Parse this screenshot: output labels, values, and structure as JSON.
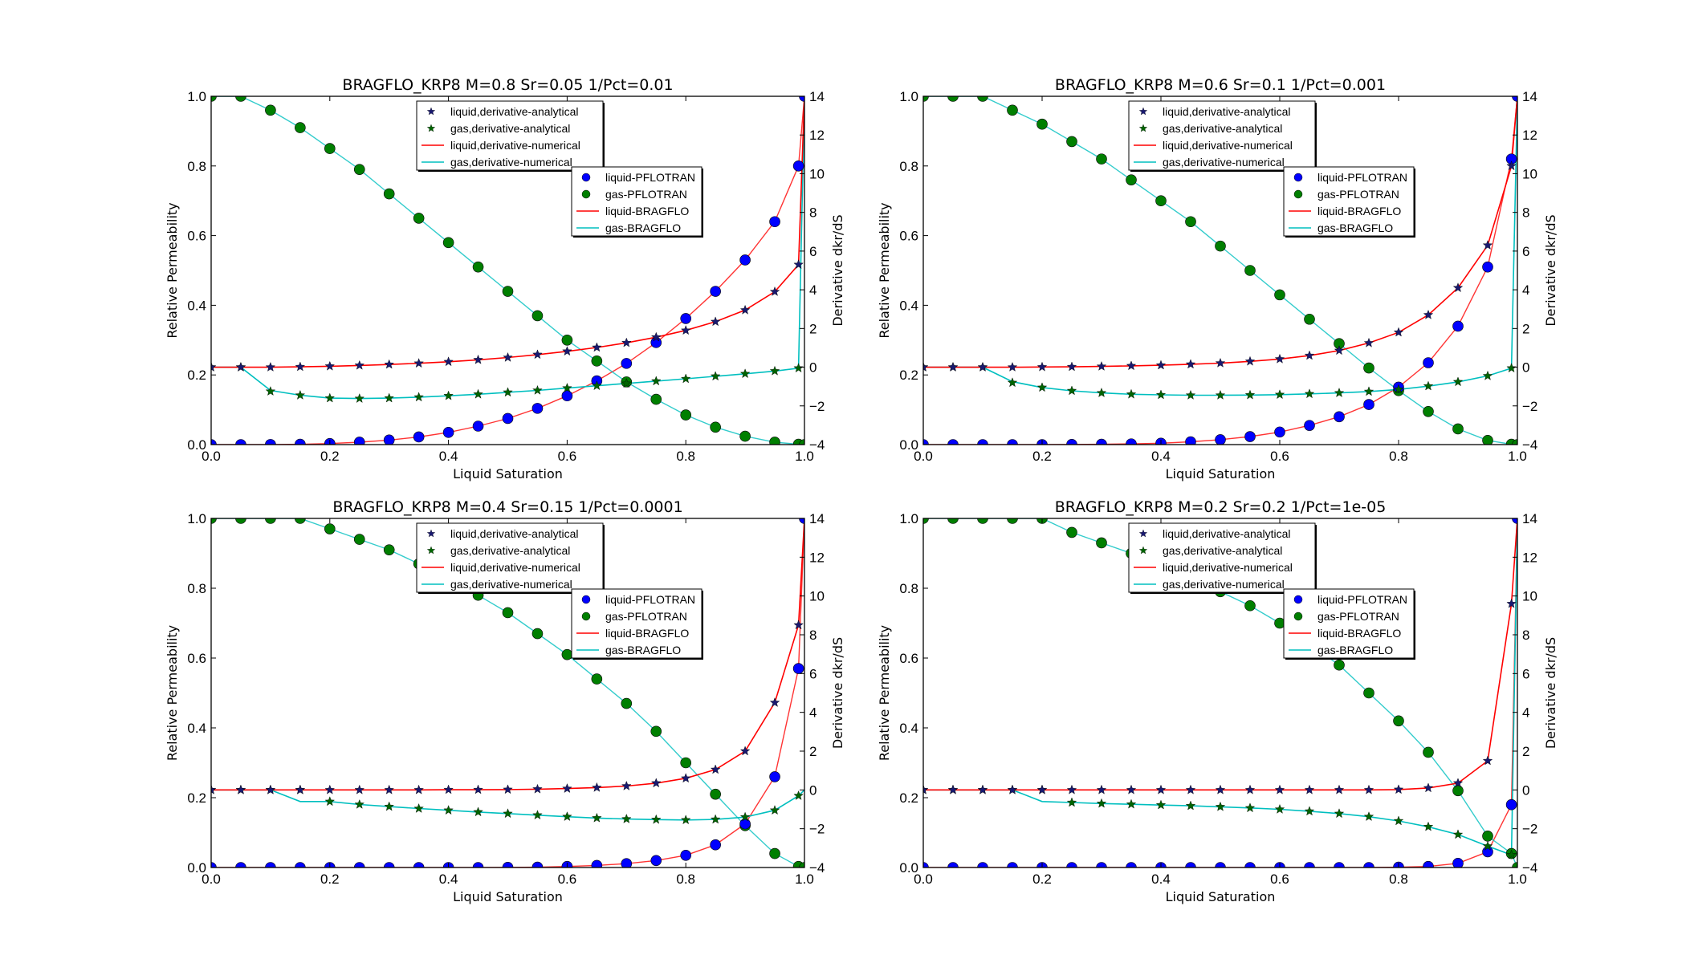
{
  "chart_data": [
    {
      "type": "scatter",
      "title": "BRAGFLO_KRP8 M=0.8 Sr=0.05 1/Pct=0.01",
      "xlabel": "Liquid Saturation",
      "ylabel": "Relative Permeability",
      "y2label": "Derivative dkr/dS",
      "xlim": [
        0,
        1
      ],
      "ylim": [
        0,
        1
      ],
      "y2lim": [
        -4,
        14
      ],
      "xticks": [
        "0.0",
        "0.2",
        "0.4",
        "0.6",
        "0.8",
        "1.0"
      ],
      "yticks": [
        "0.0",
        "0.2",
        "0.4",
        "0.6",
        "0.8",
        "1.0"
      ],
      "y2ticks": [
        "−4",
        "−2",
        "0",
        "2",
        "4",
        "6",
        "8",
        "10",
        "12",
        "14"
      ],
      "grid": false,
      "x": [
        0,
        0.05,
        0.1,
        0.15,
        0.2,
        0.25,
        0.3,
        0.35,
        0.4,
        0.45,
        0.5,
        0.55,
        0.6,
        0.65,
        0.7,
        0.75,
        0.8,
        0.85,
        0.9,
        0.95,
        0.99,
        1.0
      ],
      "series": [
        {
          "name": "liquid-PFLOTRAN",
          "axis": "left",
          "values": [
            0,
            0,
            0.0003,
            0.001,
            0.003,
            0.007,
            0.013,
            0.022,
            0.035,
            0.053,
            0.075,
            0.104,
            0.14,
            0.183,
            0.233,
            0.293,
            0.362,
            0.44,
            0.53,
            0.64,
            0.8,
            1.0
          ]
        },
        {
          "name": "gas-PFLOTRAN",
          "axis": "left",
          "values": [
            1,
            1,
            0.96,
            0.91,
            0.85,
            0.79,
            0.72,
            0.65,
            0.58,
            0.51,
            0.44,
            0.37,
            0.3,
            0.24,
            0.18,
            0.13,
            0.085,
            0.05,
            0.024,
            0.007,
            0.001,
            0
          ]
        },
        {
          "name": "liquid,derivative-analytical",
          "axis": "right",
          "values": [
            0,
            0,
            0,
            0.02,
            0.05,
            0.09,
            0.14,
            0.2,
            0.28,
            0.38,
            0.5,
            0.65,
            0.82,
            1.02,
            1.26,
            1.55,
            1.9,
            2.35,
            2.95,
            3.9,
            5.3,
            null
          ]
        },
        {
          "name": "gas,derivative-analytical",
          "axis": "right",
          "values": [
            0,
            0,
            -1.25,
            -1.45,
            -1.6,
            -1.62,
            -1.6,
            -1.55,
            -1.48,
            -1.4,
            -1.3,
            -1.2,
            -1.08,
            -0.96,
            -0.84,
            -0.72,
            -0.6,
            -0.47,
            -0.34,
            -0.2,
            -0.05,
            null
          ]
        },
        {
          "name": "liquid,derivative-numerical",
          "axis": "right",
          "values": [
            0,
            0,
            0,
            0.02,
            0.05,
            0.09,
            0.14,
            0.2,
            0.28,
            0.38,
            0.5,
            0.65,
            0.82,
            1.02,
            1.26,
            1.55,
            1.9,
            2.35,
            2.95,
            3.9,
            5.3,
            14
          ]
        },
        {
          "name": "gas,derivative-numerical",
          "axis": "right",
          "values": [
            0,
            0,
            -1.2,
            -1.45,
            -1.6,
            -1.62,
            -1.6,
            -1.55,
            -1.48,
            -1.4,
            -1.3,
            -1.2,
            -1.08,
            -0.96,
            -0.84,
            -0.72,
            -0.6,
            -0.47,
            -0.34,
            -0.2,
            -0.05,
            14
          ]
        }
      ]
    },
    {
      "type": "scatter",
      "title": "BRAGFLO_KRP8 M=0.6 Sr=0.1 1/Pct=0.001",
      "xlabel": "Liquid Saturation",
      "ylabel": "Relative Permeability",
      "y2label": "Derivative dkr/dS",
      "xlim": [
        0,
        1
      ],
      "ylim": [
        0,
        1
      ],
      "y2lim": [
        -4,
        14
      ],
      "xticks": [
        "0.0",
        "0.2",
        "0.4",
        "0.6",
        "0.8",
        "1.0"
      ],
      "yticks": [
        "0.0",
        "0.2",
        "0.4",
        "0.6",
        "0.8",
        "1.0"
      ],
      "y2ticks": [
        "−4",
        "−2",
        "0",
        "2",
        "4",
        "6",
        "8",
        "10",
        "12",
        "14"
      ],
      "grid": false,
      "x": [
        0,
        0.05,
        0.1,
        0.15,
        0.2,
        0.25,
        0.3,
        0.35,
        0.4,
        0.45,
        0.5,
        0.55,
        0.6,
        0.65,
        0.7,
        0.75,
        0.8,
        0.85,
        0.9,
        0.95,
        0.99,
        1.0
      ],
      "series": [
        {
          "name": "liquid-PFLOTRAN",
          "axis": "left",
          "values": [
            0,
            0,
            0,
            0,
            0,
            0.0005,
            0.001,
            0.002,
            0.004,
            0.008,
            0.014,
            0.023,
            0.036,
            0.055,
            0.08,
            0.115,
            0.165,
            0.235,
            0.34,
            0.51,
            0.82,
            1.0
          ]
        },
        {
          "name": "gas-PFLOTRAN",
          "axis": "left",
          "values": [
            1,
            1,
            1,
            0.96,
            0.92,
            0.87,
            0.82,
            0.76,
            0.7,
            0.64,
            0.57,
            0.5,
            0.43,
            0.36,
            0.29,
            0.22,
            0.155,
            0.095,
            0.045,
            0.012,
            0.001,
            0
          ]
        },
        {
          "name": "liquid,derivative-analytical",
          "axis": "right",
          "values": [
            0,
            0,
            0,
            0,
            0.01,
            0.02,
            0.04,
            0.07,
            0.1,
            0.15,
            0.21,
            0.3,
            0.42,
            0.6,
            0.86,
            1.25,
            1.8,
            2.7,
            4.1,
            6.3,
            10.4,
            null
          ]
        },
        {
          "name": "gas,derivative-analytical",
          "axis": "right",
          "values": [
            0,
            0,
            0,
            -0.8,
            -1.05,
            -1.22,
            -1.33,
            -1.4,
            -1.43,
            -1.45,
            -1.45,
            -1.44,
            -1.42,
            -1.38,
            -1.33,
            -1.26,
            -1.15,
            -0.98,
            -0.76,
            -0.45,
            -0.05,
            null
          ]
        },
        {
          "name": "liquid,derivative-numerical",
          "axis": "right",
          "values": [
            0,
            0,
            0,
            0,
            0.01,
            0.02,
            0.04,
            0.07,
            0.1,
            0.15,
            0.21,
            0.3,
            0.42,
            0.6,
            0.86,
            1.25,
            1.8,
            2.7,
            4.1,
            6.3,
            10.4,
            14
          ]
        },
        {
          "name": "gas,derivative-numerical",
          "axis": "right",
          "values": [
            0,
            0,
            0,
            -0.75,
            -1.05,
            -1.22,
            -1.33,
            -1.4,
            -1.43,
            -1.45,
            -1.45,
            -1.44,
            -1.42,
            -1.38,
            -1.33,
            -1.26,
            -1.15,
            -0.98,
            -0.76,
            -0.45,
            -0.05,
            14
          ]
        }
      ]
    },
    {
      "type": "scatter",
      "title": "BRAGFLO_KRP8 M=0.4 Sr=0.15 1/Pct=0.0001",
      "xlabel": "Liquid Saturation",
      "ylabel": "Relative Permeability",
      "y2label": "Derivative dkr/dS",
      "xlim": [
        0,
        1
      ],
      "ylim": [
        0,
        1
      ],
      "y2lim": [
        -4,
        14
      ],
      "xticks": [
        "0.0",
        "0.2",
        "0.4",
        "0.6",
        "0.8",
        "1.0"
      ],
      "yticks": [
        "0.0",
        "0.2",
        "0.4",
        "0.6",
        "0.8",
        "1.0"
      ],
      "y2ticks": [
        "−4",
        "−2",
        "0",
        "2",
        "4",
        "6",
        "8",
        "10",
        "12",
        "14"
      ],
      "grid": false,
      "x": [
        0,
        0.05,
        0.1,
        0.15,
        0.2,
        0.25,
        0.3,
        0.35,
        0.4,
        0.45,
        0.5,
        0.55,
        0.6,
        0.65,
        0.7,
        0.75,
        0.8,
        0.85,
        0.9,
        0.95,
        0.99,
        1.0
      ],
      "series": [
        {
          "name": "liquid-PFLOTRAN",
          "axis": "left",
          "values": [
            0,
            0,
            0,
            0,
            0,
            0,
            0,
            0,
            0,
            0,
            0.0005,
            0.001,
            0.003,
            0.006,
            0.011,
            0.02,
            0.035,
            0.065,
            0.125,
            0.26,
            0.57,
            1.0
          ]
        },
        {
          "name": "gas-PFLOTRAN",
          "axis": "left",
          "values": [
            1,
            1,
            1,
            1,
            0.97,
            0.94,
            0.91,
            0.87,
            0.83,
            0.78,
            0.73,
            0.67,
            0.61,
            0.54,
            0.47,
            0.39,
            0.3,
            0.21,
            0.12,
            0.04,
            0.003,
            0
          ]
        },
        {
          "name": "liquid,derivative-analytical",
          "axis": "right",
          "values": [
            0,
            0,
            0,
            0,
            0,
            0,
            0,
            0,
            0.01,
            0.01,
            0.02,
            0.04,
            0.07,
            0.12,
            0.2,
            0.35,
            0.6,
            1.05,
            2.0,
            4.5,
            8.5,
            null
          ]
        },
        {
          "name": "gas,derivative-analytical",
          "axis": "right",
          "values": [
            0,
            0,
            0,
            0,
            -0.6,
            -0.75,
            -0.86,
            -0.96,
            -1.05,
            -1.14,
            -1.22,
            -1.3,
            -1.38,
            -1.45,
            -1.5,
            -1.53,
            -1.55,
            -1.52,
            -1.4,
            -1.05,
            -0.3,
            null
          ]
        },
        {
          "name": "liquid,derivative-numerical",
          "axis": "right",
          "values": [
            0,
            0,
            0,
            0,
            0,
            0,
            0,
            0,
            0.01,
            0.01,
            0.02,
            0.04,
            0.07,
            0.12,
            0.2,
            0.35,
            0.6,
            1.05,
            2.0,
            4.5,
            8.5,
            14
          ]
        },
        {
          "name": "gas,derivative-numerical",
          "axis": "right",
          "values": [
            0,
            0,
            0,
            -0.6,
            -0.6,
            -0.75,
            -0.86,
            -0.96,
            -1.05,
            -1.14,
            -1.22,
            -1.3,
            -1.38,
            -1.45,
            -1.5,
            -1.53,
            -1.55,
            -1.52,
            -1.4,
            -1.05,
            -0.3,
            0
          ]
        }
      ]
    },
    {
      "type": "scatter",
      "title": "BRAGFLO_KRP8 M=0.2 Sr=0.2 1/Pct=1e-05",
      "xlabel": "Liquid Saturation",
      "ylabel": "Relative Permeability",
      "y2label": "Derivative dkr/dS",
      "xlim": [
        0,
        1
      ],
      "ylim": [
        0,
        1
      ],
      "y2lim": [
        -4,
        14
      ],
      "xticks": [
        "0.0",
        "0.2",
        "0.4",
        "0.6",
        "0.8",
        "1.0"
      ],
      "yticks": [
        "0.0",
        "0.2",
        "0.4",
        "0.6",
        "0.8",
        "1.0"
      ],
      "y2ticks": [
        "−4",
        "−2",
        "0",
        "2",
        "4",
        "6",
        "8",
        "10",
        "12",
        "14"
      ],
      "grid": false,
      "x": [
        0,
        0.05,
        0.1,
        0.15,
        0.2,
        0.25,
        0.3,
        0.35,
        0.4,
        0.45,
        0.5,
        0.55,
        0.6,
        0.65,
        0.7,
        0.75,
        0.8,
        0.85,
        0.9,
        0.95,
        0.99,
        1.0
      ],
      "series": [
        {
          "name": "liquid-PFLOTRAN",
          "axis": "left",
          "values": [
            0,
            0,
            0,
            0,
            0,
            0,
            0,
            0,
            0,
            0,
            0,
            0,
            0,
            0,
            0,
            0,
            0.001,
            0.003,
            0.012,
            0.045,
            0.18,
            1.0
          ]
        },
        {
          "name": "gas-PFLOTRAN",
          "axis": "left",
          "values": [
            1,
            1,
            1,
            1,
            1,
            0.96,
            0.93,
            0.9,
            0.87,
            0.83,
            0.79,
            0.75,
            0.7,
            0.64,
            0.58,
            0.5,
            0.42,
            0.33,
            0.22,
            0.09,
            0.04,
            0
          ]
        },
        {
          "name": "liquid,derivative-analytical",
          "axis": "right",
          "values": [
            0,
            0,
            0,
            0,
            0,
            0,
            0,
            0,
            0,
            0,
            0,
            0,
            0,
            0,
            0,
            0,
            0.02,
            0.1,
            0.35,
            1.5,
            9.6,
            null
          ]
        },
        {
          "name": "gas,derivative-analytical",
          "axis": "right",
          "values": [
            0,
            0,
            0,
            0,
            0,
            -0.65,
            -0.7,
            -0.74,
            -0.78,
            -0.82,
            -0.87,
            -0.93,
            -1.0,
            -1.1,
            -1.22,
            -1.38,
            -1.6,
            -1.9,
            -2.3,
            -2.9,
            -3.35,
            null
          ]
        },
        {
          "name": "liquid,derivative-numerical",
          "axis": "right",
          "values": [
            0,
            0,
            0,
            0,
            0,
            0,
            0,
            0,
            0,
            0,
            0,
            0,
            0,
            0,
            0,
            0,
            0.02,
            0.1,
            0.35,
            1.5,
            9.6,
            14
          ]
        },
        {
          "name": "gas,derivative-numerical",
          "axis": "right",
          "values": [
            0,
            0,
            0,
            0,
            -0.6,
            -0.65,
            -0.7,
            -0.74,
            -0.78,
            -0.82,
            -0.87,
            -0.93,
            -1.0,
            -1.1,
            -1.22,
            -1.38,
            -1.6,
            -1.9,
            -2.3,
            -2.9,
            -3.35,
            14
          ]
        }
      ]
    }
  ],
  "legend_upper": [
    "liquid,derivative-analytical",
    "gas,derivative-analytical",
    "liquid,derivative-numerical",
    "gas,derivative-numerical"
  ],
  "legend_lower": [
    "liquid-PFLOTRAN",
    "gas-PFLOTRAN",
    "liquid-BRAGFLO",
    "gas-BRAGFLO"
  ],
  "colors": {
    "liquid_marker": "#0000ff",
    "gas_marker": "#007f00",
    "liquid_star": "#191970",
    "gas_star": "#006400",
    "liquid_line": "#ff0000",
    "gas_line": "#00bfbf"
  }
}
